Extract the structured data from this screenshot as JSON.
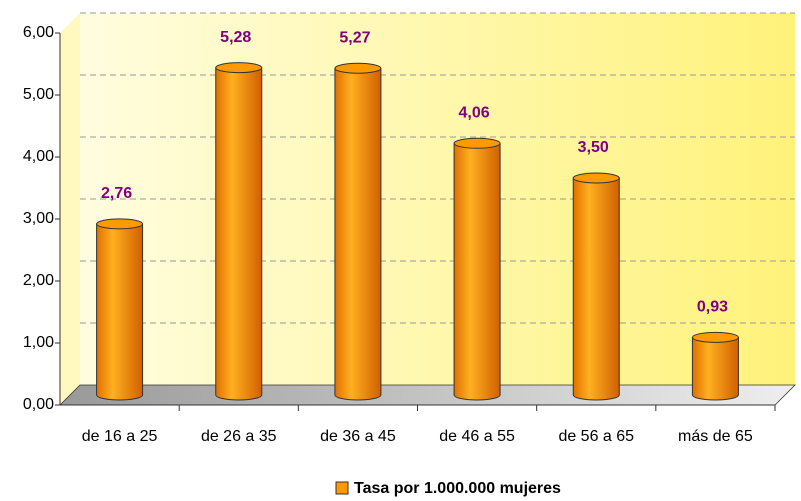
{
  "chart_data": {
    "type": "bar",
    "categories": [
      "de 16 a 25",
      "de 26 a 35",
      "de 36 a 45",
      "de 46 a 55",
      "de 56 a 65",
      "más de 65"
    ],
    "series": [
      {
        "name": "Tasa por 1.000.000 mujeres",
        "color": "#ff9900",
        "values": [
          2.76,
          5.28,
          5.27,
          4.06,
          3.5,
          0.93
        ],
        "value_labels": [
          "2,76",
          "5,28",
          "5,27",
          "4,06",
          "3,50",
          "0,93"
        ]
      }
    ],
    "ylim": [
      0,
      6
    ],
    "yticks": [
      {
        "value": 0,
        "label": "0,00"
      },
      {
        "value": 1,
        "label": "1,00"
      },
      {
        "value": 2,
        "label": "2,00"
      },
      {
        "value": 3,
        "label": "3,00"
      },
      {
        "value": 4,
        "label": "4,00"
      },
      {
        "value": 5,
        "label": "5,00"
      },
      {
        "value": 6,
        "label": "6,00"
      }
    ],
    "grid": true,
    "legend": "bottom"
  }
}
